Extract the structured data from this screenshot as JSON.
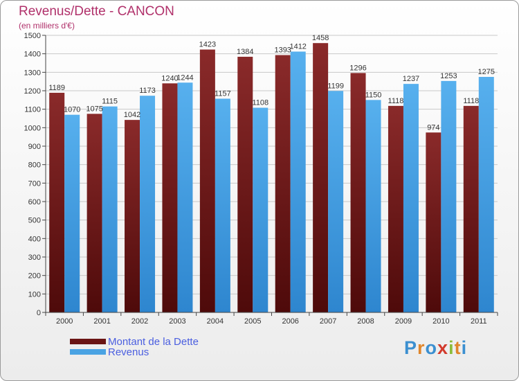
{
  "title": "Revenus/Dette - CANCON",
  "subtitle": "(en milliers d'€)",
  "legend": [
    {
      "label": "Montant de la Dette",
      "color": "#7a1d1d"
    },
    {
      "label": "Revenus",
      "color": "#4aa3e3"
    }
  ],
  "logo": {
    "p": "P",
    "r": "r",
    "o": "o",
    "x": "x",
    "i": "i",
    "t": "t",
    "i2": "i"
  },
  "chart_data": {
    "type": "bar",
    "categories": [
      "2000",
      "2001",
      "2002",
      "2003",
      "2004",
      "2005",
      "2006",
      "2007",
      "2008",
      "2009",
      "2010",
      "2011"
    ],
    "series": [
      {
        "name": "Montant de la Dette",
        "color": "#7a1d1d",
        "values": [
          1189,
          1075,
          1042,
          1240,
          1423,
          1384,
          1393,
          1458,
          1296,
          1118,
          974,
          1118
        ]
      },
      {
        "name": "Revenus",
        "color": "#4aa3e3",
        "values": [
          1070,
          1115,
          1173,
          1244,
          1157,
          1108,
          1412,
          1199,
          1150,
          1237,
          1253,
          1275
        ]
      }
    ],
    "ylim": [
      0,
      1500
    ],
    "yticks": [
      0,
      100,
      200,
      300,
      400,
      500,
      600,
      700,
      800,
      900,
      1000,
      1100,
      1200,
      1300,
      1400,
      1500
    ],
    "grid": true
  }
}
